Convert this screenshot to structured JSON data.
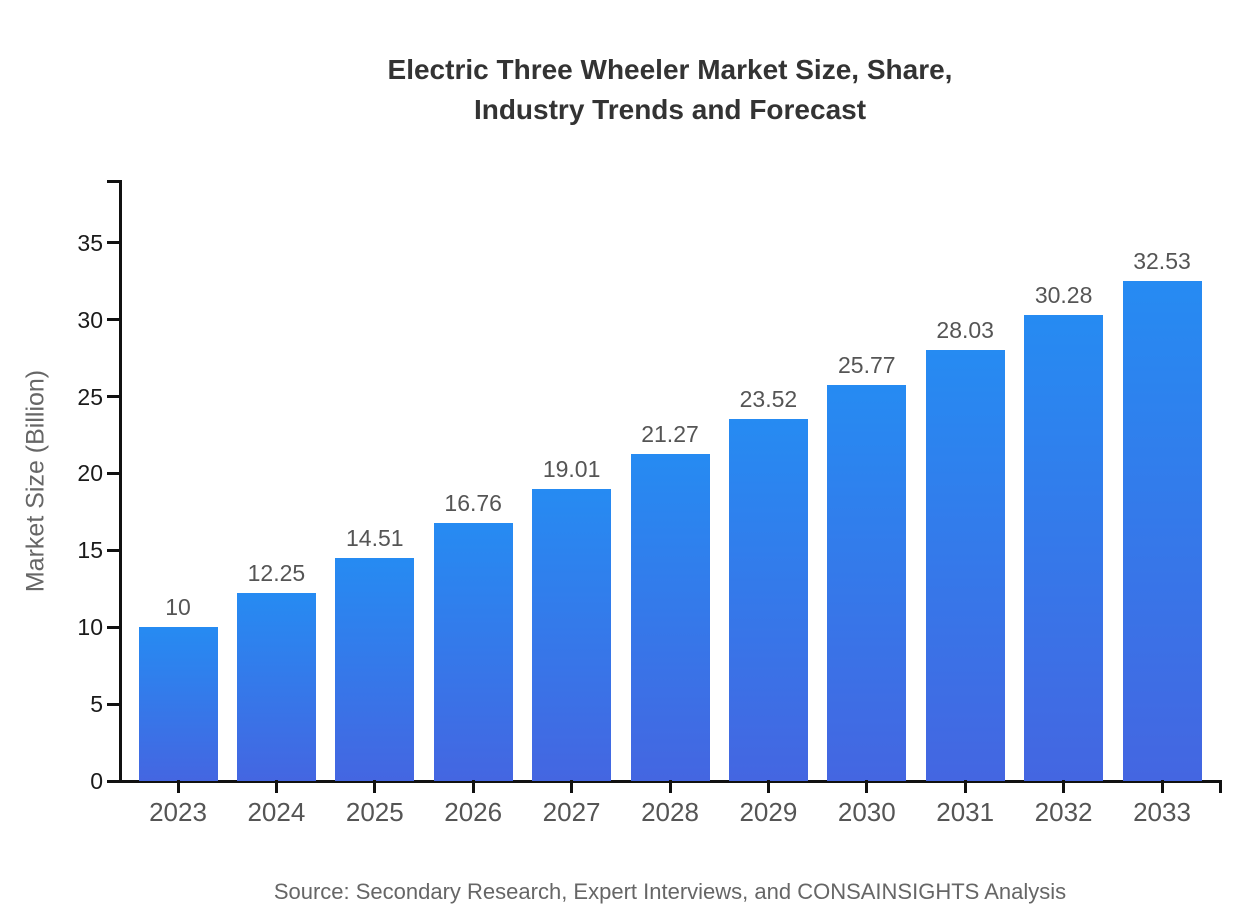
{
  "title": {
    "line1": "Electric Three Wheeler Market Size, Share,",
    "line2": "Industry Trends and Forecast"
  },
  "source_note": "Source: Secondary Research, Expert Interviews, and CONSAINSIGHTS Analysis",
  "chart_data": {
    "type": "bar",
    "title": "Electric Three Wheeler Market Size, Share, Industry Trends and Forecast",
    "categories": [
      "2023",
      "2024",
      "2025",
      "2026",
      "2027",
      "2028",
      "2029",
      "2030",
      "2031",
      "2032",
      "2033"
    ],
    "values": [
      10,
      12.25,
      14.51,
      16.76,
      19.01,
      21.27,
      23.52,
      25.77,
      28.03,
      30.28,
      32.53
    ],
    "value_labels": [
      "10",
      "12.25",
      "14.51",
      "16.76",
      "19.01",
      "21.27",
      "23.52",
      "25.77",
      "28.03",
      "30.28",
      "32.53"
    ],
    "xlabel": "",
    "ylabel": "Market Size (Billion)",
    "ylim": [
      0,
      39
    ],
    "yticks": [
      0,
      5,
      10,
      15,
      20,
      25,
      30,
      35
    ],
    "ytick_labels": [
      "0",
      "5",
      "10",
      "15",
      "20",
      "25",
      "30",
      "35"
    ],
    "grid": false,
    "legend": false,
    "colors": {
      "bar_gradient_top": "#268bf2",
      "bar_gradient_bottom": "#4466e1",
      "axis": "#111111",
      "y_tick_label": "#1a1a1a",
      "category_label": "#555555",
      "value_label": "#555555",
      "axis_title": "#666666",
      "title": "#333333",
      "source": "#666666"
    }
  }
}
